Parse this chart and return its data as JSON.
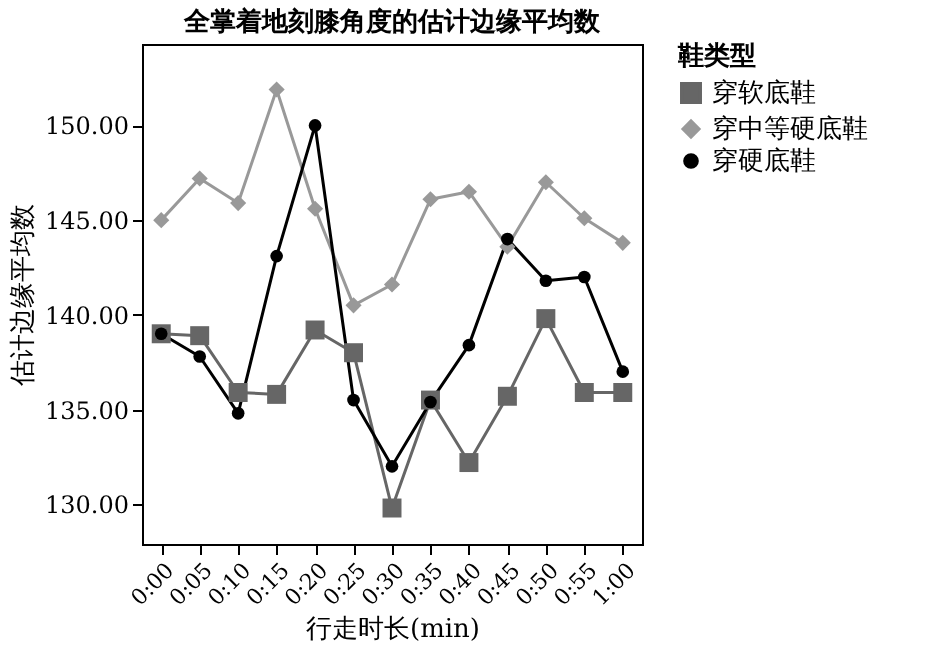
{
  "chart_data": {
    "type": "line",
    "title": "全掌着地刻膝角度的估计边缘平均数",
    "xlabel": "行走时长(min)",
    "ylabel": "估计边缘平均数",
    "legend_title": "鞋类型",
    "legend": "top right",
    "grid": false,
    "categories": [
      "0:00",
      "0:05",
      "0:10",
      "0:15",
      "0:20",
      "0:25",
      "0:30",
      "0:35",
      "0:40",
      "0:45",
      "0:50",
      "0:55",
      "1:00"
    ],
    "ylim": [
      127.9,
      154.3
    ],
    "yticks": [
      {
        "value": 130,
        "label": "130.00"
      },
      {
        "value": 135,
        "label": "135.00"
      },
      {
        "value": 140,
        "label": "140.00"
      },
      {
        "value": 145,
        "label": "145.00"
      },
      {
        "value": 150,
        "label": "150.00"
      }
    ],
    "series": [
      {
        "name": "穿软底鞋",
        "color": "#666666",
        "marker": "square",
        "values": [
          139.0,
          138.9,
          135.9,
          135.8,
          139.2,
          138.0,
          129.8,
          135.5,
          132.2,
          135.7,
          139.8,
          135.9,
          135.9
        ]
      },
      {
        "name": "穿中等硬底鞋",
        "color": "#999999",
        "marker": "diamond",
        "values": [
          145.0,
          147.2,
          145.9,
          151.9,
          145.6,
          140.5,
          141.6,
          146.1,
          146.5,
          143.6,
          147.0,
          145.1,
          143.8
        ]
      },
      {
        "name": "穿硬底鞋",
        "color": "#000000",
        "marker": "circle",
        "values": [
          139.0,
          137.8,
          134.8,
          143.1,
          150.0,
          135.5,
          132.0,
          135.4,
          138.4,
          144.0,
          141.8,
          142.0,
          137.0
        ]
      }
    ]
  }
}
